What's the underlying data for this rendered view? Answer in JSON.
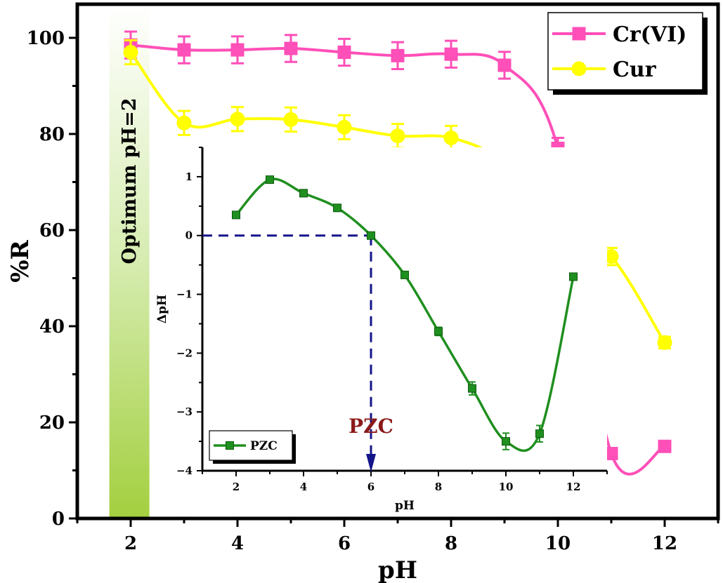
{
  "chart_data": [
    {
      "type": "line",
      "title": "",
      "xlabel": "pH",
      "ylabel": "%R",
      "xlim": [
        1.0,
        13.0
      ],
      "ylim": [
        0,
        107
      ],
      "xticks": [
        2,
        4,
        6,
        8,
        10,
        12
      ],
      "yticks": [
        0,
        20,
        40,
        60,
        80,
        100
      ],
      "grid": false,
      "legend_position": "top-right",
      "annotation": "Optimum pH=2",
      "highlight_band": [
        1.6,
        2.35
      ],
      "series": [
        {
          "name": "Cr(VI)",
          "color": "#ff4fb8",
          "marker": "square",
          "x": [
            2,
            3,
            4,
            5,
            6,
            7,
            8,
            9,
            10,
            11,
            12
          ],
          "y": [
            98.5,
            97.5,
            97.5,
            97.8,
            97.0,
            96.3,
            96.6,
            94.3,
            77.0,
            13.5,
            15.0
          ],
          "error": [
            2.8,
            2.8,
            2.8,
            2.8,
            2.8,
            2.8,
            2.8,
            2.8,
            2.2,
            0,
            0
          ]
        },
        {
          "name": "Cur",
          "color": "#ffff00",
          "marker": "circle",
          "x": [
            2,
            3,
            4,
            5,
            6,
            7,
            8,
            9,
            10,
            11,
            12
          ],
          "y": [
            97.0,
            82.3,
            83.1,
            83.0,
            81.4,
            79.6,
            79.2,
            74.1,
            62.0,
            54.5,
            36.6
          ],
          "error": [
            2.5,
            2.5,
            2.5,
            2.5,
            2.5,
            2.5,
            2.5,
            2.3,
            2.0,
            1.8,
            1.2
          ]
        }
      ]
    },
    {
      "type": "line",
      "title": "",
      "xlabel": "pH",
      "ylabel": "ΔpH",
      "xlim": [
        1.0,
        13.0
      ],
      "ylim": [
        -4,
        1.5
      ],
      "xticks": [
        2,
        4,
        6,
        8,
        10,
        12
      ],
      "yticks": [
        -4,
        -3,
        -2,
        -1,
        0,
        1
      ],
      "grid": false,
      "legend_position": "bottom-left",
      "annotation": "PZC",
      "pzc": 6,
      "series": [
        {
          "name": "PZC",
          "color": "#1f8f1f",
          "marker": "square",
          "x": [
            2,
            3,
            4,
            5,
            6,
            7,
            8,
            9,
            10,
            11,
            12
          ],
          "y": [
            0.35,
            0.95,
            0.72,
            0.47,
            0.0,
            -0.67,
            -1.63,
            -2.6,
            -3.5,
            -3.37,
            -0.7
          ],
          "error": [
            0,
            0,
            0,
            0,
            0,
            0.05,
            0.07,
            0.11,
            0.14,
            0.14,
            0
          ]
        }
      ]
    }
  ]
}
